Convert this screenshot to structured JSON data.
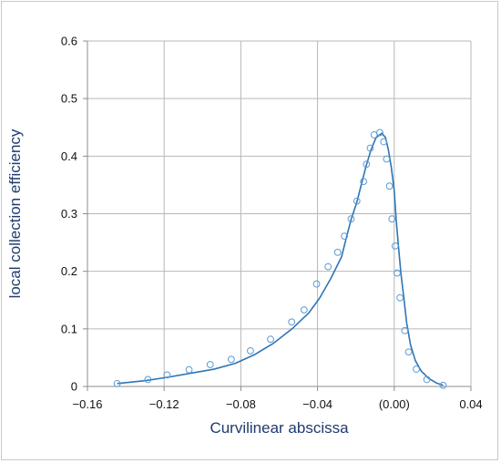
{
  "chart_data": {
    "type": "line",
    "title": "",
    "xlabel": "Curvilinear abscissa",
    "ylabel": "local collection efficiency",
    "xlim": [
      -0.16,
      0.04
    ],
    "ylim": [
      0,
      0.6
    ],
    "x_ticks": [
      -0.16,
      -0.12,
      -0.08,
      -0.04,
      0.0,
      0.04
    ],
    "x_tick_labels": [
      "−0.16",
      "−0.12",
      "−0.08",
      "−0.04",
      "(0.00)",
      "0.04"
    ],
    "y_ticks": [
      0,
      0.1,
      0.2,
      0.3,
      0.4,
      0.5,
      0.6
    ],
    "y_tick_labels": [
      "0",
      "0.1",
      "0.2",
      "0.3",
      "0.4",
      "0.5",
      "0.6"
    ],
    "grid": true,
    "legend": "none",
    "series": [
      {
        "style": "line",
        "color": "#2e75b6",
        "points": [
          [
            -0.1445,
            0.005
          ],
          [
            -0.13,
            0.01
          ],
          [
            -0.118,
            0.016
          ],
          [
            -0.106,
            0.023
          ],
          [
            -0.094,
            0.03
          ],
          [
            -0.083,
            0.04
          ],
          [
            -0.073,
            0.055
          ],
          [
            -0.063,
            0.075
          ],
          [
            -0.053,
            0.101
          ],
          [
            -0.0445,
            0.128
          ],
          [
            -0.039,
            0.153
          ],
          [
            -0.033,
            0.188
          ],
          [
            -0.0275,
            0.225
          ],
          [
            -0.025,
            0.258
          ],
          [
            -0.0225,
            0.29
          ],
          [
            -0.0195,
            0.32
          ],
          [
            -0.017,
            0.353
          ],
          [
            -0.0145,
            0.385
          ],
          [
            -0.012,
            0.412
          ],
          [
            -0.0095,
            0.432
          ],
          [
            -0.0065,
            0.44
          ],
          [
            -0.0045,
            0.432
          ],
          [
            -0.003,
            0.41
          ],
          [
            -0.0015,
            0.38
          ],
          [
            0.0,
            0.34
          ],
          [
            0.001,
            0.29
          ],
          [
            0.0022,
            0.243
          ],
          [
            0.0035,
            0.196
          ],
          [
            0.005,
            0.154
          ],
          [
            0.0065,
            0.11
          ],
          [
            0.0085,
            0.072
          ],
          [
            0.011,
            0.045
          ],
          [
            0.014,
            0.027
          ],
          [
            0.018,
            0.014
          ],
          [
            0.022,
            0.006
          ],
          [
            0.0255,
            0.002
          ]
        ]
      },
      {
        "style": "markers",
        "color": "#5b9bd5",
        "points": [
          [
            -0.1445,
            0.005
          ],
          [
            -0.1285,
            0.012
          ],
          [
            -0.1185,
            0.02
          ],
          [
            -0.107,
            0.029
          ],
          [
            -0.096,
            0.038
          ],
          [
            -0.085,
            0.047
          ],
          [
            -0.075,
            0.062
          ],
          [
            -0.0645,
            0.082
          ],
          [
            -0.0535,
            0.112
          ],
          [
            -0.047,
            0.133
          ],
          [
            -0.0405,
            0.178
          ],
          [
            -0.0345,
            0.208
          ],
          [
            -0.0295,
            0.233
          ],
          [
            -0.026,
            0.261
          ],
          [
            -0.0225,
            0.291
          ],
          [
            -0.0195,
            0.322
          ],
          [
            -0.016,
            0.356
          ],
          [
            -0.0145,
            0.386
          ],
          [
            -0.0125,
            0.414
          ],
          [
            -0.0105,
            0.437
          ],
          [
            -0.0075,
            0.441
          ],
          [
            -0.0055,
            0.425
          ],
          [
            -0.004,
            0.395
          ],
          [
            -0.0025,
            0.348
          ],
          [
            -0.0012,
            0.291
          ],
          [
            0.0005,
            0.244
          ],
          [
            0.0015,
            0.197
          ],
          [
            0.003,
            0.154
          ],
          [
            0.0055,
            0.097
          ],
          [
            0.0075,
            0.06
          ],
          [
            0.0115,
            0.03
          ],
          [
            0.017,
            0.012
          ],
          [
            0.0255,
            0.002
          ]
        ]
      }
    ]
  }
}
